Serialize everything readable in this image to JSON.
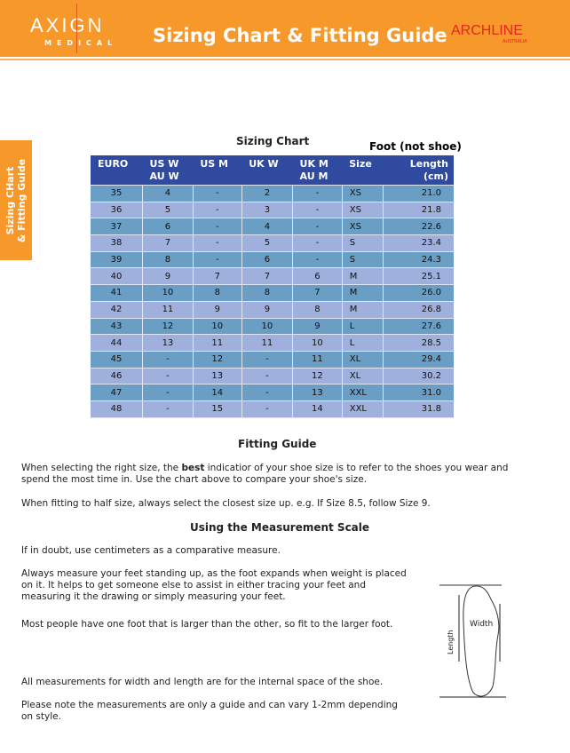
{
  "header": {
    "brand": "AXIGN",
    "brand_sub": "MEDICAL",
    "title": "Sizing Chart & Fitting Guide",
    "partner": "ARCHLINE",
    "partner_sub": "AUSTRALIA"
  },
  "side_tab": {
    "line1": "Sizing CHart",
    "line2": "& Fitting Guide"
  },
  "sizing_chart": {
    "title": "Sizing Chart",
    "foot_label": "Foot (not shoe)",
    "columns": [
      "EURO",
      "US W\nAU W",
      "US M",
      "UK W",
      "UK M\nAU M",
      "Size",
      "Length\n(cm)"
    ],
    "rows": [
      [
        "35",
        "4",
        "-",
        "2",
        "-",
        "XS",
        "21.0"
      ],
      [
        "36",
        "5",
        "-",
        "3",
        "-",
        "XS",
        "21.8"
      ],
      [
        "37",
        "6",
        "-",
        "4",
        "-",
        "XS",
        "22.6"
      ],
      [
        "38",
        "7",
        "-",
        "5",
        "-",
        "S",
        "23.4"
      ],
      [
        "39",
        "8",
        "-",
        "6",
        "-",
        "S",
        "24.3"
      ],
      [
        "40",
        "9",
        "7",
        "7",
        "6",
        "M",
        "25.1"
      ],
      [
        "41",
        "10",
        "8",
        "8",
        "7",
        "M",
        "26.0"
      ],
      [
        "42",
        "11",
        "9",
        "9",
        "8",
        "M",
        "26.8"
      ],
      [
        "43",
        "12",
        "10",
        "10",
        "9",
        "L",
        "27.6"
      ],
      [
        "44",
        "13",
        "11",
        "11",
        "10",
        "L",
        "28.5"
      ],
      [
        "45",
        "-",
        "12",
        "-",
        "11",
        "XL",
        "29.4"
      ],
      [
        "46",
        "-",
        "13",
        "-",
        "12",
        "XL",
        "30.2"
      ],
      [
        "47",
        "-",
        "14",
        "-",
        "13",
        "XXL",
        "31.0"
      ],
      [
        "48",
        "-",
        "15",
        "-",
        "14",
        "XXL",
        "31.8"
      ]
    ]
  },
  "fitting_guide": {
    "title": "Fitting Guide",
    "p1_a": "When selecting the right size, the ",
    "p1_b": "best",
    "p1_c": " indicatior of your shoe size is to refer to the shoes you wear and spend the most time in. Use the chart above to compare your shoe's size.",
    "p2": "When fitting to half size, always select the closest size up. e.g. If Size 8.5, follow Size 9."
  },
  "measurement": {
    "title": "Using the Measurement Scale",
    "paragraphs": [
      "If in doubt, use centimeters as a comparative measure.",
      "Always measure your feet standing up, as the foot expands when weight is placed on it. It helps to get someone else to assist in either tracing your feet and measuring it the drawing or simply measuring your feet.",
      "Most people have one foot that is larger than the other, so fit to the larger foot.",
      "All measurements for width and length are for the internal space of the shoe.",
      "Please note the measurements are only a guide and can vary 1-2mm depending on style."
    ],
    "diagram": {
      "length_label": "Length",
      "width_label": "Width"
    }
  },
  "colors": {
    "orange": "#f7982a",
    "table_header": "#2f4a9e",
    "row_a": "#6a9ec4",
    "row_b": "#a0b0dc",
    "archline_red": "#e4261c"
  }
}
